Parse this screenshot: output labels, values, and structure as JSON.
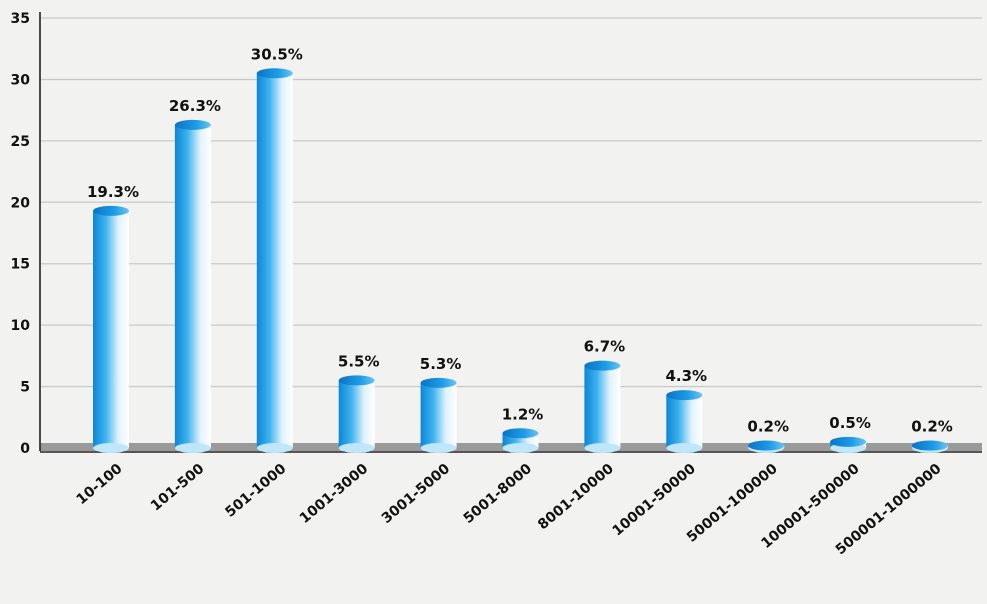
{
  "chart_data": {
    "type": "bar",
    "title": "",
    "xlabel": "",
    "ylabel": "",
    "ylim": [
      0,
      35
    ],
    "yticks": [
      0,
      5,
      10,
      15,
      20,
      25,
      30,
      35
    ],
    "grid": true,
    "legend": "none",
    "bar_color": "#29a8e8",
    "categories": [
      "10-100",
      "101-500",
      "501-1000",
      "1001-3000",
      "3001-5000",
      "5001-8000",
      "8001-10000",
      "10001-50000",
      "50001-100000",
      "100001-500000",
      "500001-1000000"
    ],
    "values": [
      19.3,
      26.3,
      30.5,
      5.5,
      5.3,
      1.2,
      6.7,
      4.3,
      0.2,
      0.5,
      0.2
    ],
    "data_labels": [
      "19.3%",
      "26.3%",
      "30.5%",
      "5.5%",
      "5.3%",
      "1.2%",
      "6.7%",
      "4.3%",
      "0.2%",
      "0.5%",
      "0.2%"
    ]
  }
}
